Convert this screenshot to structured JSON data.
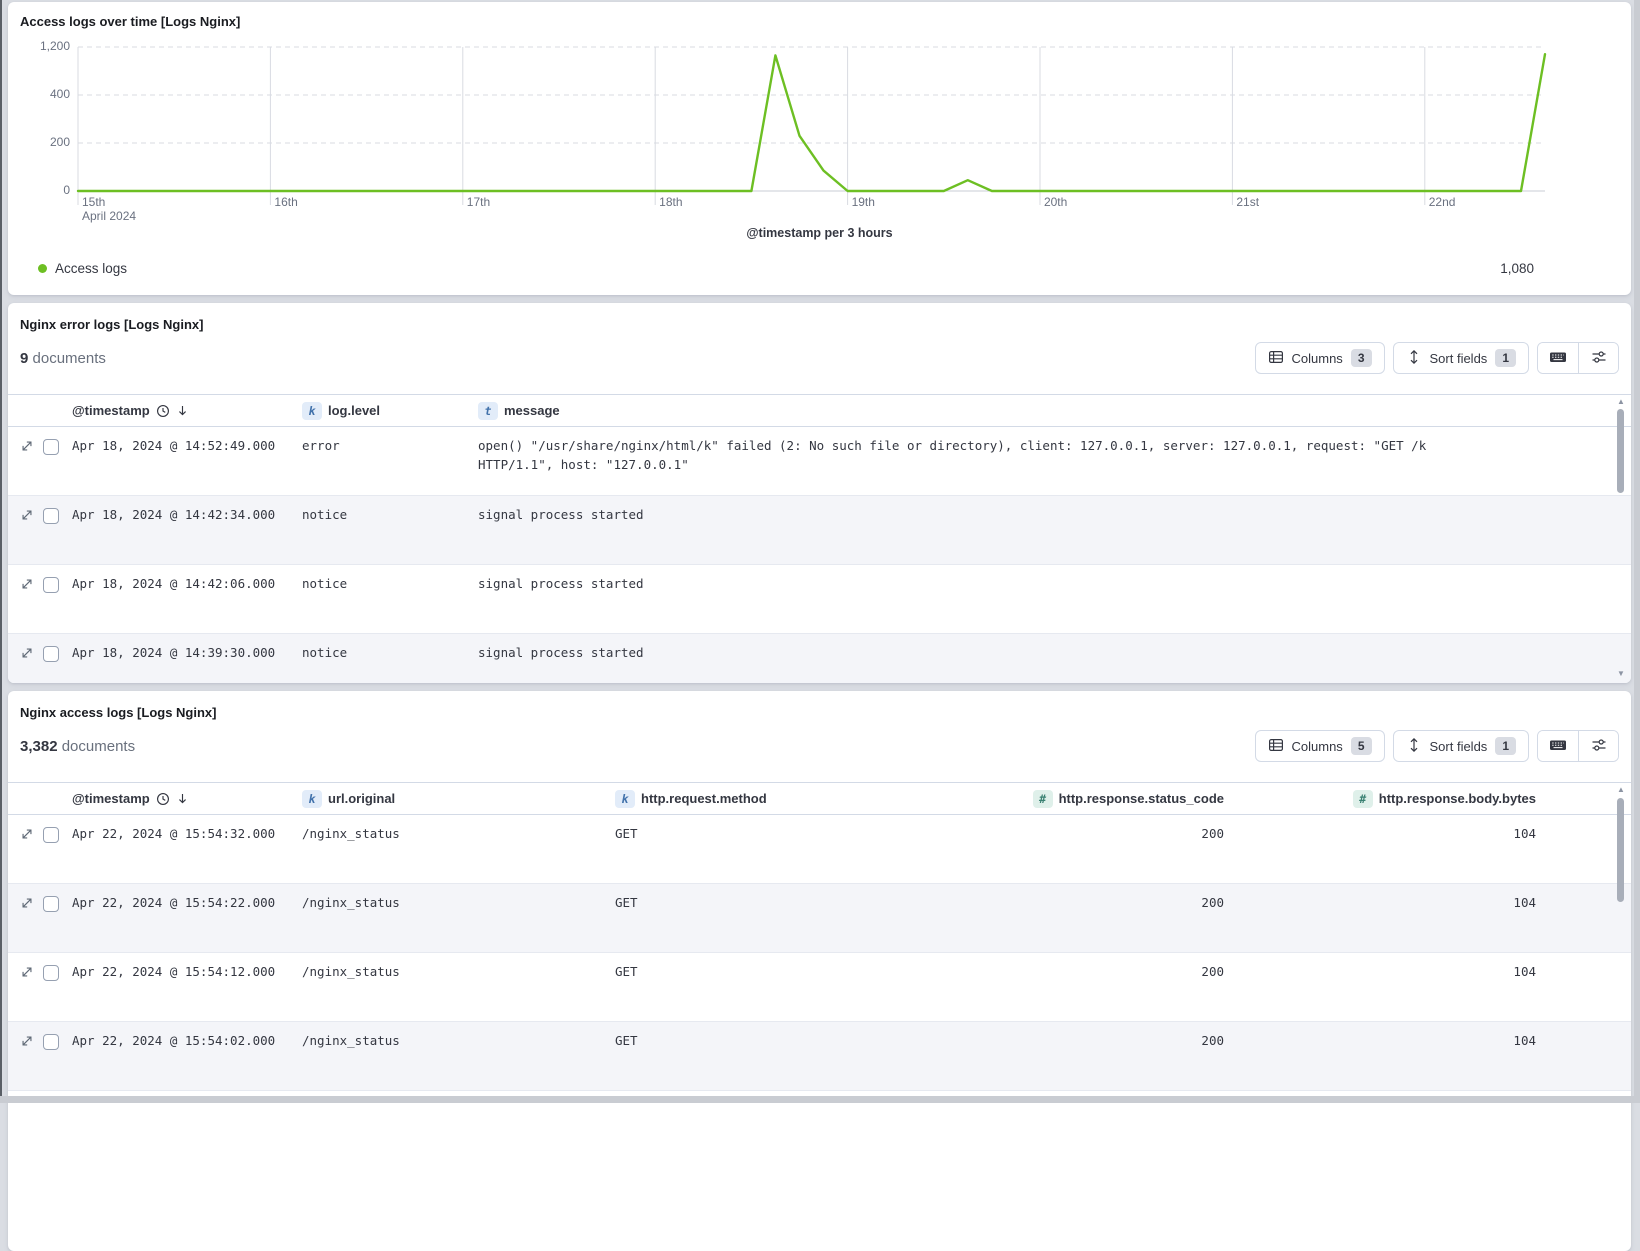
{
  "chart_panel": {
    "title": "Access logs over time [Logs Nginx]",
    "x_axis_title": "@timestamp per 3 hours",
    "legend": {
      "label": "Access logs",
      "value": "1,080"
    }
  },
  "chart_data": {
    "type": "line",
    "title": "Access logs over time [Logs Nginx]",
    "xlabel": "@timestamp per 3 hours",
    "ylabel": "",
    "legend_position": "bottom-left",
    "grid": "horizontal-dashed, vertical-solid",
    "x_tick_labels": [
      "15th",
      "16th",
      "17th",
      "18th",
      "19th",
      "20th",
      "21st",
      "22nd"
    ],
    "x_first_tick_sublabel": "April 2024",
    "x_tick_hours": [
      0,
      24,
      48,
      72,
      96,
      120,
      144,
      168
    ],
    "x_max_hours": 183,
    "y_ticks": [
      {
        "value": 0,
        "label": "0"
      },
      {
        "value": 200,
        "label": "200"
      },
      {
        "value": 400,
        "label": "400"
      },
      {
        "value": 1200,
        "label": "1,200"
      }
    ],
    "series": [
      {
        "name": "Access logs",
        "color": "#6dbf23",
        "last_bucket_value": 1080,
        "points_hours_value": [
          [
            0,
            0
          ],
          [
            84,
            0
          ],
          [
            87,
            1060
          ],
          [
            90,
            230
          ],
          [
            93,
            85
          ],
          [
            96,
            0
          ],
          [
            108,
            0
          ],
          [
            111,
            45
          ],
          [
            114,
            0
          ],
          [
            180,
            0
          ],
          [
            183,
            1080
          ]
        ]
      }
    ]
  },
  "error_panel": {
    "title": "Nginx error logs [Logs Nginx]",
    "doc_count": "9",
    "doc_label": "documents",
    "toolbar": {
      "columns_label": "Columns",
      "columns_count": "3",
      "sort_label": "Sort fields",
      "sort_count": "1"
    },
    "columns": [
      {
        "label": "@timestamp",
        "type": "time"
      },
      {
        "label": "log.level",
        "type": "k"
      },
      {
        "label": "message",
        "type": "t"
      }
    ],
    "rows": [
      {
        "timestamp": "Apr 18, 2024 @ 14:52:49.000",
        "level": "error",
        "message": "open() \"/usr/share/nginx/html/k\" failed (2: No such file or directory), client: 127.0.0.1, server: 127.0.0.1, request: \"GET /k HTTP/1.1\", host: \"127.0.0.1\""
      },
      {
        "timestamp": "Apr 18, 2024 @ 14:42:34.000",
        "level": "notice",
        "message": "signal process started"
      },
      {
        "timestamp": "Apr 18, 2024 @ 14:42:06.000",
        "level": "notice",
        "message": "signal process started"
      },
      {
        "timestamp": "Apr 18, 2024 @ 14:39:30.000",
        "level": "notice",
        "message": "signal process started"
      }
    ]
  },
  "access_panel": {
    "title": "Nginx access logs [Logs Nginx]",
    "doc_count": "3,382",
    "doc_label": "documents",
    "toolbar": {
      "columns_label": "Columns",
      "columns_count": "5",
      "sort_label": "Sort fields",
      "sort_count": "1"
    },
    "columns": [
      {
        "label": "@timestamp",
        "type": "time"
      },
      {
        "label": "url.original",
        "type": "k"
      },
      {
        "label": "http.request.method",
        "type": "k"
      },
      {
        "label": "http.response.status_code",
        "type": "num"
      },
      {
        "label": "http.response.body.bytes",
        "type": "num"
      }
    ],
    "rows": [
      {
        "timestamp": "Apr 22, 2024 @ 15:54:32.000",
        "url": "/nginx_status",
        "method": "GET",
        "status": "200",
        "bytes": "104"
      },
      {
        "timestamp": "Apr 22, 2024 @ 15:54:22.000",
        "url": "/nginx_status",
        "method": "GET",
        "status": "200",
        "bytes": "104"
      },
      {
        "timestamp": "Apr 22, 2024 @ 15:54:12.000",
        "url": "/nginx_status",
        "method": "GET",
        "status": "200",
        "bytes": "104"
      },
      {
        "timestamp": "Apr 22, 2024 @ 15:54:02.000",
        "url": "/nginx_status",
        "method": "GET",
        "status": "200",
        "bytes": "104"
      }
    ]
  }
}
